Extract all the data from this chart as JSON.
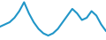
{
  "x": [
    0,
    1,
    2,
    3,
    4,
    5,
    6,
    7,
    8,
    9,
    10,
    11,
    12,
    13,
    14,
    15,
    16,
    17,
    18,
    19,
    20,
    21,
    22
  ],
  "y": [
    6,
    7,
    8,
    10,
    13,
    17,
    12,
    8,
    5,
    3,
    2,
    3,
    5,
    8,
    11,
    14,
    12,
    9,
    10,
    13,
    11,
    7,
    4
  ],
  "line_color": "#2196c8",
  "linewidth": 1.5,
  "background_color": "#ffffff",
  "ylim": [
    0,
    18
  ],
  "xlim": [
    0,
    22
  ]
}
